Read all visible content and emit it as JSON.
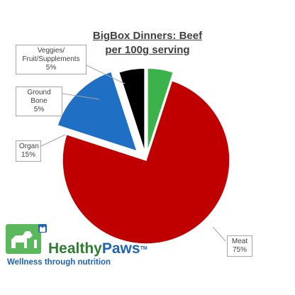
{
  "chart_data": {
    "type": "pie",
    "title_line1": "BigBox Dinners: Beef",
    "title_line2": "per 100g serving",
    "slices": [
      {
        "label_lines": [
          "Veggies/",
          "Fruit/Supplements"
        ],
        "value_label": "5%",
        "value": 5,
        "color": "#3cb24a"
      },
      {
        "label_lines": [
          "Meat"
        ],
        "value_label": "75%",
        "value": 75,
        "color": "#c00000"
      },
      {
        "label_lines": [
          "Organ"
        ],
        "value_label": "15%",
        "value": 15,
        "color": "#1f6fc5"
      },
      {
        "label_lines": [
          "Ground Bone"
        ],
        "value_label": "5%",
        "value": 5,
        "color": "#000000"
      }
    ],
    "exploded": [
      "Veggies/Fruit/Supplements",
      "Organ",
      "Ground Bone"
    ],
    "legend": "none"
  },
  "brand": {
    "name_part1": "Healthy",
    "name_part2": "Paws",
    "trademark": "TM",
    "tagline": "Wellness through nutrition",
    "colors": {
      "green": "#5cb85c",
      "blue": "#1e63b5"
    }
  }
}
